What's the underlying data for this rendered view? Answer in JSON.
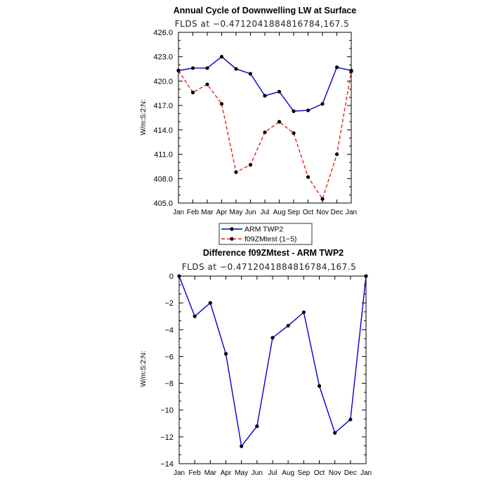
{
  "chart_data": [
    {
      "type": "line",
      "title": "Annual Cycle of Downwelling LW at Surface",
      "subtitle": "FLDS at −0.4712041884816784,167.5",
      "ylabel": "W/m:S:2:N:",
      "categories": [
        "Jan",
        "Feb",
        "Mar",
        "Apr",
        "May",
        "Jun",
        "Jul",
        "Aug",
        "Sep",
        "Oct",
        "Nov",
        "Dec",
        "Jan"
      ],
      "ylim": [
        405,
        426
      ],
      "yticks": [
        "405.0",
        "408.0",
        "411.0",
        "414.0",
        "417.0",
        "420.0",
        "423.0",
        "426.0"
      ],
      "series": [
        {
          "name": "ARM TWP2",
          "color": "#0000cc",
          "dash": "solid",
          "values": [
            421.3,
            421.6,
            421.6,
            423.0,
            421.5,
            420.9,
            418.2,
            418.7,
            416.3,
            416.4,
            417.2,
            421.7,
            421.3
          ]
        },
        {
          "name": "f09ZMtest (1−5)",
          "color": "#e8211b",
          "dash": "dashed",
          "values": [
            421.3,
            418.6,
            419.6,
            417.2,
            408.8,
            409.7,
            413.7,
            415.0,
            413.6,
            408.2,
            405.5,
            411.0,
            421.2
          ]
        }
      ],
      "legend_position": "bottom"
    },
    {
      "type": "line",
      "title": "Difference f09ZMtest - ARM TWP2",
      "subtitle": "FLDS at −0.4712041884816784,167.5",
      "ylabel": "W/m:S:2:N:",
      "categories": [
        "Jan",
        "Feb",
        "Mar",
        "Apr",
        "May",
        "Jun",
        "Jul",
        "Aug",
        "Sep",
        "Oct",
        "Nov",
        "Dec",
        "Jan"
      ],
      "ylim": [
        -14,
        0
      ],
      "yticks": [
        "−14",
        "−12",
        "−10",
        "−8",
        "−6",
        "−4",
        "−2",
        "0"
      ],
      "series": [
        {
          "color": "#0000cc",
          "dash": "solid",
          "values": [
            0,
            -3.0,
            -2.0,
            -5.8,
            -12.7,
            -11.2,
            -4.6,
            -3.7,
            -2.7,
            -8.2,
            -11.7,
            -10.7,
            0
          ]
        }
      ]
    }
  ]
}
